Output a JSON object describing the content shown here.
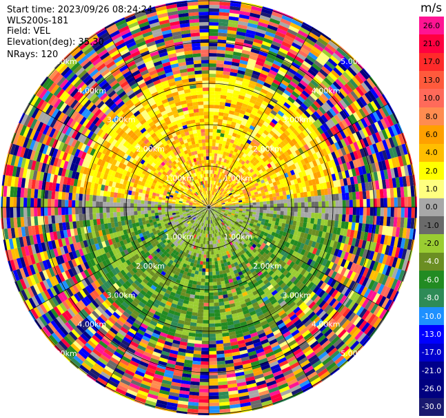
{
  "header": {
    "start_time": "Start time: 2023/09/26 08:24:24",
    "instrument": "WLS200s-181",
    "field": "Field: VEL",
    "elevation": "Elevation(deg): 35.30",
    "nrays": "NRays: 120"
  },
  "colorbar": {
    "unit": "m/s",
    "ticks": [
      "26.0",
      "21.0",
      "17.0",
      "13.0",
      "10.0",
      "8.0",
      "6.0",
      "4.0",
      "2.0",
      "1.0",
      "0.0",
      "-1.0",
      "-2.0",
      "-4.0",
      "-6.0",
      "-8.0",
      "-10.0",
      "-13.0",
      "-17.0",
      "-21.0",
      "-26.0",
      "-30.0"
    ],
    "colors": [
      "#ff1493",
      "#ff0040",
      "#ff2a2a",
      "#ff5a3c",
      "#ff6a5a",
      "#ff8c50",
      "#ffa000",
      "#ffbe00",
      "#ffff00",
      "#ffff80",
      "#a8a8a8",
      "#6a6a6a",
      "#9acd32",
      "#6b8e23",
      "#228b22",
      "#2e8b57",
      "#1e90ff",
      "#0000ff",
      "#0000cd",
      "#00008b",
      "#000080",
      "#191970"
    ]
  },
  "range_labels": [
    "1.00km",
    "2.00km",
    "3.00km",
    "4.00km",
    "5.00km"
  ],
  "chart_data": {
    "type": "heatmap",
    "projection": "polar PPI",
    "field": "VEL",
    "units": "m/s",
    "value_range": [
      -30.0,
      26.0
    ],
    "rings_km": [
      1,
      2,
      3,
      4,
      5
    ],
    "n_rays": 120,
    "pattern": "near range (< 3 km): positive velocities (yellow/orange) toward the north, negative (green) toward the south, near-zero (gray) along the east-west line; beyond ~3.2 km: noisy multicolor values across the full scale"
  }
}
